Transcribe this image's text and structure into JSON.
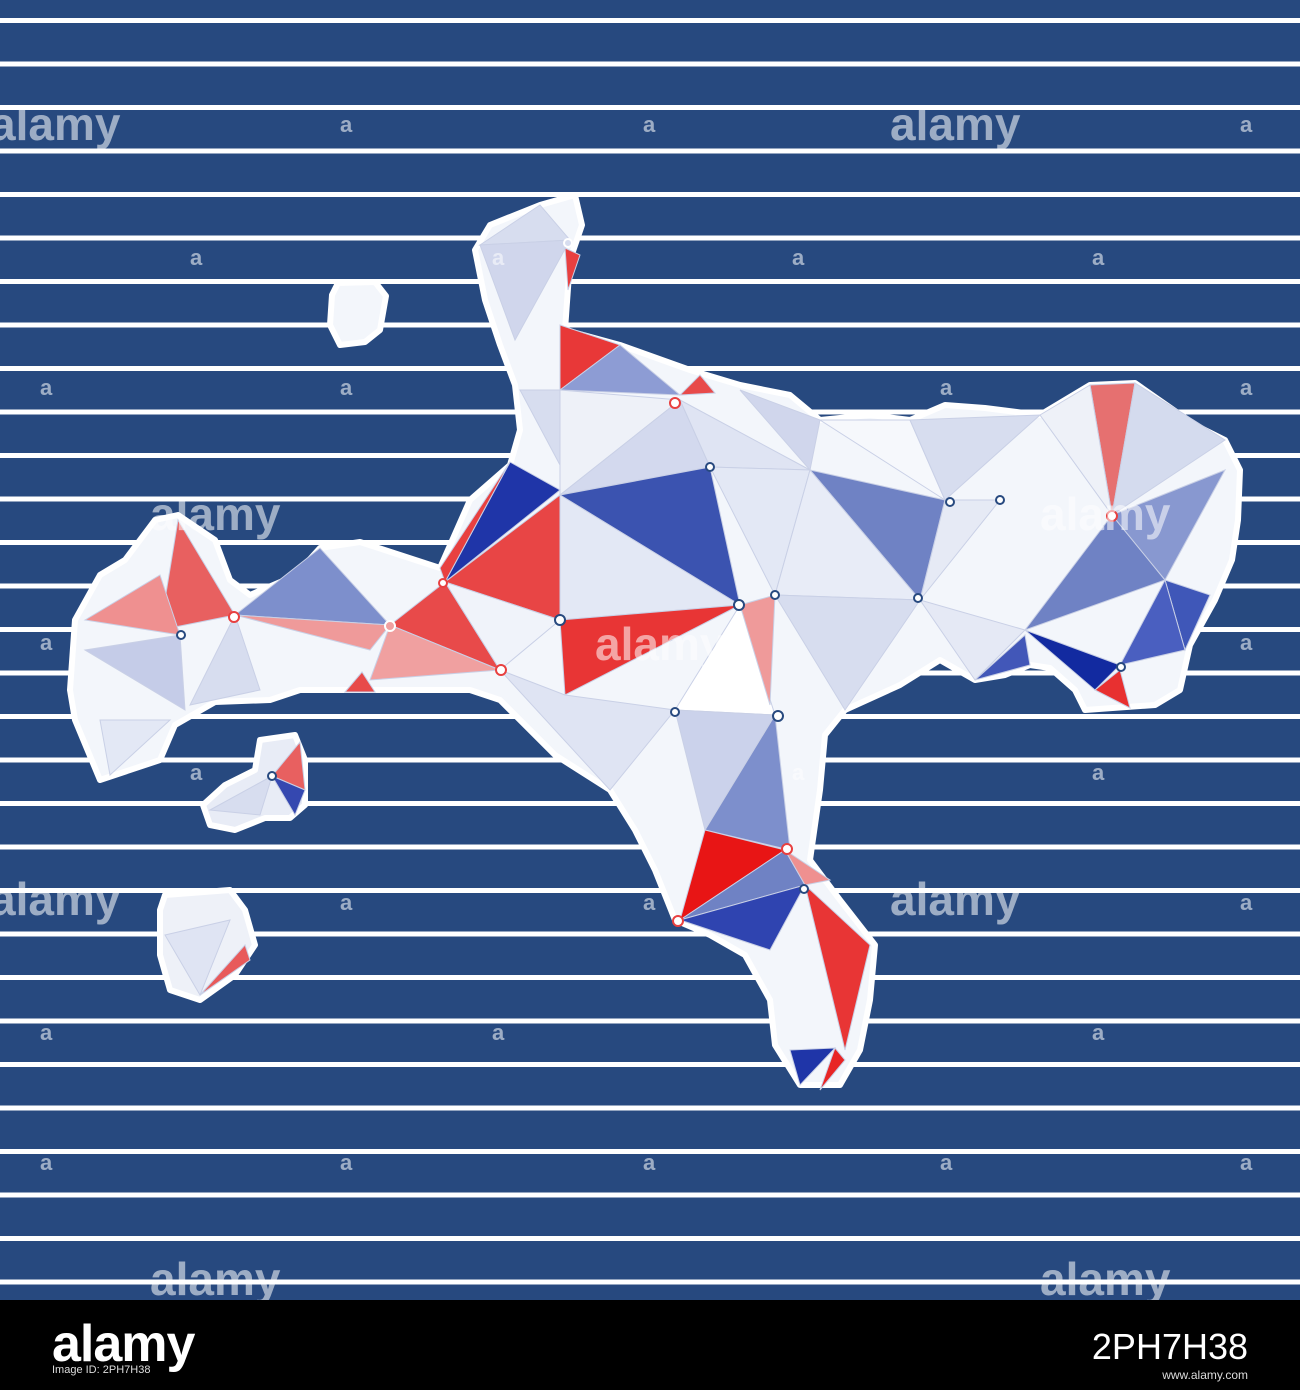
{
  "colors": {
    "background": "#27497f",
    "stripe": "#ffffff",
    "land": "#f3f6fb",
    "outline": "#ffffff",
    "red": "#e84040",
    "light_red": "#ef8a8a",
    "blue": "#3a52b0",
    "light_blue": "#7d8fcc",
    "pale_blue": "#d5dcee",
    "footer": "#000000"
  },
  "watermark": {
    "text": "alamy",
    "small_mark": "a"
  },
  "footer": {
    "logo": "alamy",
    "logo_sub": "Image ID: 2PH7H38",
    "image_id": "2PH7H38",
    "url": "www.alamy.com"
  }
}
